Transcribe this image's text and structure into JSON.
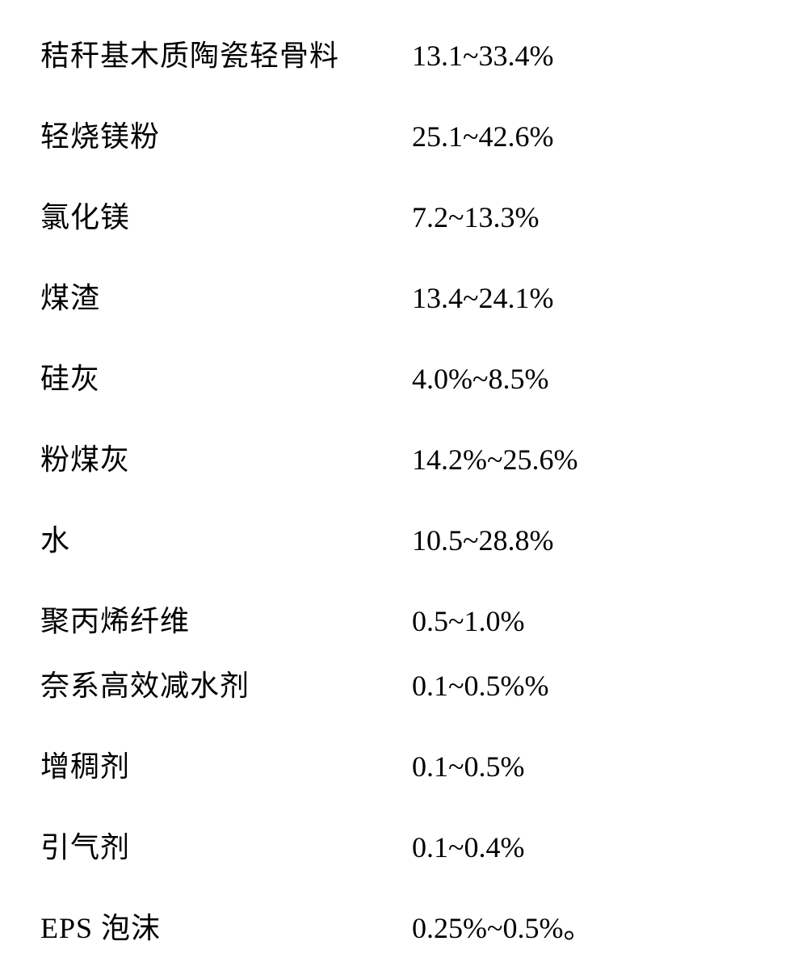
{
  "rows": [
    {
      "label": "秸秆基木质陶瓷轻骨料",
      "value": "13.1~33.4%",
      "spacing": "normal"
    },
    {
      "label": "轻烧镁粉",
      "value": "25.1~42.6%",
      "spacing": "normal"
    },
    {
      "label": "氯化镁",
      "value": "7.2~13.3%",
      "spacing": "normal"
    },
    {
      "label": "煤渣",
      "value": "13.4~24.1%",
      "spacing": "normal"
    },
    {
      "label": "硅灰",
      "value": "4.0%~8.5%",
      "spacing": "normal"
    },
    {
      "label": "粉煤灰",
      "value": "14.2%~25.6%",
      "spacing": "normal"
    },
    {
      "label": "水",
      "value": "10.5~28.8%",
      "spacing": "normal"
    },
    {
      "label": "聚丙烯纤维",
      "value": "0.5~1.0%",
      "spacing": "tight"
    },
    {
      "label": "奈系高效减水剂",
      "value": "0.1~0.5%%",
      "spacing": "normal"
    },
    {
      "label": "增稠剂",
      "value": "0.1~0.5%",
      "spacing": "normal"
    },
    {
      "label": "引气剂",
      "value": "0.1~0.4%",
      "spacing": "normal"
    },
    {
      "label": "EPS 泡沫",
      "value": "0.25%~0.5%。",
      "spacing": "normal"
    }
  ],
  "styling": {
    "background_color": "#ffffff",
    "text_color": "#000000",
    "label_fontsize": 36,
    "value_fontsize": 36,
    "label_width": 460,
    "row_gap_normal": 48,
    "row_gap_tight": 28,
    "font_family_cjk": "SimSun",
    "font_family_latin": "Times New Roman"
  }
}
